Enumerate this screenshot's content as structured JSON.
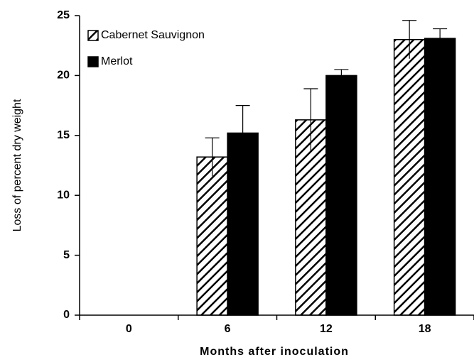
{
  "chart_data": {
    "type": "bar",
    "x_label": "Months after inoculation",
    "y_label": "Loss of percent dry weight",
    "categories": [
      "0",
      "6",
      "12",
      "18"
    ],
    "series": [
      {
        "name": "Cabernet Sauvignon",
        "color": "#000000",
        "pattern": "hatch",
        "values": [
          null,
          13.2,
          16.3,
          23.0
        ],
        "errors": [
          null,
          1.6,
          2.6,
          1.6
        ]
      },
      {
        "name": "Merlot",
        "color": "#000000",
        "pattern": "solid",
        "values": [
          null,
          15.2,
          20.0,
          23.1
        ],
        "errors": [
          null,
          2.3,
          0.5,
          0.8
        ]
      }
    ],
    "ylim": [
      0,
      25
    ],
    "yticks": [
      0,
      5,
      10,
      15,
      20,
      25
    ],
    "grid": false,
    "legend": "upper left"
  }
}
